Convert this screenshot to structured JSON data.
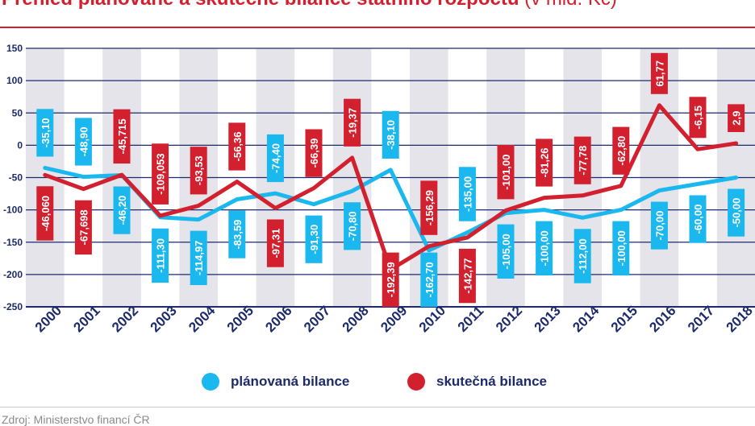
{
  "title": {
    "main": "Přehled plánované a skutečné bilance státního rozpočtu",
    "unit": "(v mld. Kč)"
  },
  "source": "Zdroj: Ministerstvo financí ČR",
  "colors": {
    "planned": "#1ab8ee",
    "actual": "#d3202f",
    "axis_text": "#1d2a6b",
    "grid": "#1d2a6b",
    "band": "#e4e4ea"
  },
  "chart_data": {
    "type": "line",
    "title": "Přehled plánované a skutečné bilance státního rozpočtu (v mld. Kč)",
    "xlabel": "",
    "ylabel": "",
    "ylim": [
      -250,
      150
    ],
    "yticks": [
      -250,
      -200,
      -150,
      -100,
      -50,
      0,
      50,
      100,
      150
    ],
    "ytick_labels": [
      "-250",
      "-200",
      "-150",
      "-100",
      "-50",
      "0",
      "50",
      "100",
      "150"
    ],
    "grid": true,
    "categories": [
      "2000",
      "2001",
      "2002",
      "2003",
      "2004",
      "2005",
      "2006",
      "2007",
      "2008",
      "2009",
      "2010",
      "2011",
      "2012",
      "2013",
      "2014",
      "2015",
      "2016",
      "2017",
      "2018"
    ],
    "series": [
      {
        "name": "plánovaná bilance",
        "color": "#1ab8ee",
        "values": [
          -35.1,
          -48.9,
          -46.2,
          -111.3,
          -114.97,
          -83.59,
          -74.4,
          -91.3,
          -70.8,
          -38.1,
          -162.7,
          -135.0,
          -105.0,
          -100.0,
          -112.0,
          -100.0,
          -70.0,
          -60.0,
          -50.0
        ],
        "labels": [
          "-35,10",
          "-48,90",
          "-46,20",
          "-111,30",
          "-114,97",
          "-83,59",
          "-74,40",
          "-91,30",
          "-70,80",
          "-38,10",
          "-162,70",
          "-135,00",
          "-105,00",
          "-100,00",
          "-112,00",
          "-100,00",
          "-70,00",
          "-60,00",
          "-50,00"
        ]
      },
      {
        "name": "skutečná bilance",
        "color": "#d3202f",
        "values": [
          -46.06,
          -67.698,
          -45.715,
          -109.053,
          -93.53,
          -56.36,
          -97.31,
          -66.39,
          -19.37,
          -192.39,
          -156.29,
          -142.77,
          -101.0,
          -81.26,
          -77.78,
          -62.8,
          61.77,
          -6.15,
          2.9
        ],
        "labels": [
          "-46,060",
          "-67,698",
          "-45,715",
          "-109,053",
          "-93,53",
          "-56,36",
          "-97,31",
          "-66,39",
          "-19,37",
          "-192,39",
          "-156,29",
          "-142,77",
          "-101,00",
          "-81,26",
          "-77,78",
          "-62,80",
          "61,77",
          "-6,15",
          "2,9"
        ]
      }
    ],
    "legend": "bottom-center"
  }
}
